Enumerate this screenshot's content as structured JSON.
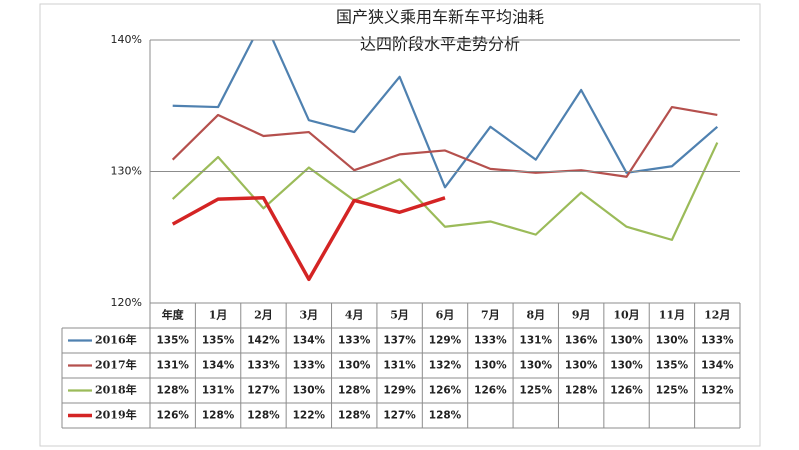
{
  "chart_data": {
    "type": "line",
    "title": [
      "国产狭义乘用车新车平均油耗",
      "达四阶段水平走势分析"
    ],
    "categories": [
      "年度",
      "1月",
      "2月",
      "3月",
      "4月",
      "5月",
      "6月",
      "7月",
      "8月",
      "9月",
      "10月",
      "11月",
      "12月"
    ],
    "ylim": [
      120,
      140
    ],
    "yticks": [
      {
        "value": 120,
        "label": "120%"
      },
      {
        "value": 130,
        "label": "130%"
      },
      {
        "value": 140,
        "label": "140%"
      }
    ],
    "grid": true,
    "series": [
      {
        "name": "2016年",
        "color": "#4f81b0",
        "width": 2.2,
        "values": [
          135.0,
          134.9,
          141.6,
          133.9,
          133.0,
          137.2,
          128.8,
          133.4,
          130.9,
          136.2,
          129.9,
          130.4,
          133.4
        ],
        "value_labels": [
          "135%",
          "135%",
          "142%",
          "134%",
          "133%",
          "137%",
          "129%",
          "133%",
          "131%",
          "136%",
          "130%",
          "130%",
          "133%"
        ]
      },
      {
        "name": "2017年",
        "color": "#b5504d",
        "width": 2.2,
        "values": [
          130.9,
          134.3,
          132.7,
          133.0,
          130.1,
          131.3,
          131.6,
          130.2,
          129.9,
          130.1,
          129.6,
          134.9,
          134.3
        ],
        "value_labels": [
          "131%",
          "134%",
          "133%",
          "133%",
          "130%",
          "131%",
          "132%",
          "130%",
          "130%",
          "130%",
          "130%",
          "135%",
          "134%"
        ]
      },
      {
        "name": "2018年",
        "color": "#9bbb59",
        "width": 2.2,
        "values": [
          127.9,
          131.1,
          127.2,
          130.3,
          127.8,
          129.4,
          125.8,
          126.2,
          125.2,
          128.4,
          125.8,
          124.8,
          132.2
        ],
        "value_labels": [
          "128%",
          "131%",
          "127%",
          "130%",
          "128%",
          "129%",
          "126%",
          "126%",
          "125%",
          "128%",
          "126%",
          "125%",
          "132%"
        ]
      },
      {
        "name": "2019年",
        "color": "#d42424",
        "width": 3.5,
        "values": [
          126.0,
          127.9,
          128.0,
          121.8,
          127.8,
          126.9,
          128.0,
          null,
          null,
          null,
          null,
          null,
          null
        ],
        "value_labels": [
          "126%",
          "128%",
          "128%",
          "122%",
          "128%",
          "127%",
          "128%",
          null,
          null,
          null,
          null,
          null,
          null
        ]
      }
    ]
  }
}
